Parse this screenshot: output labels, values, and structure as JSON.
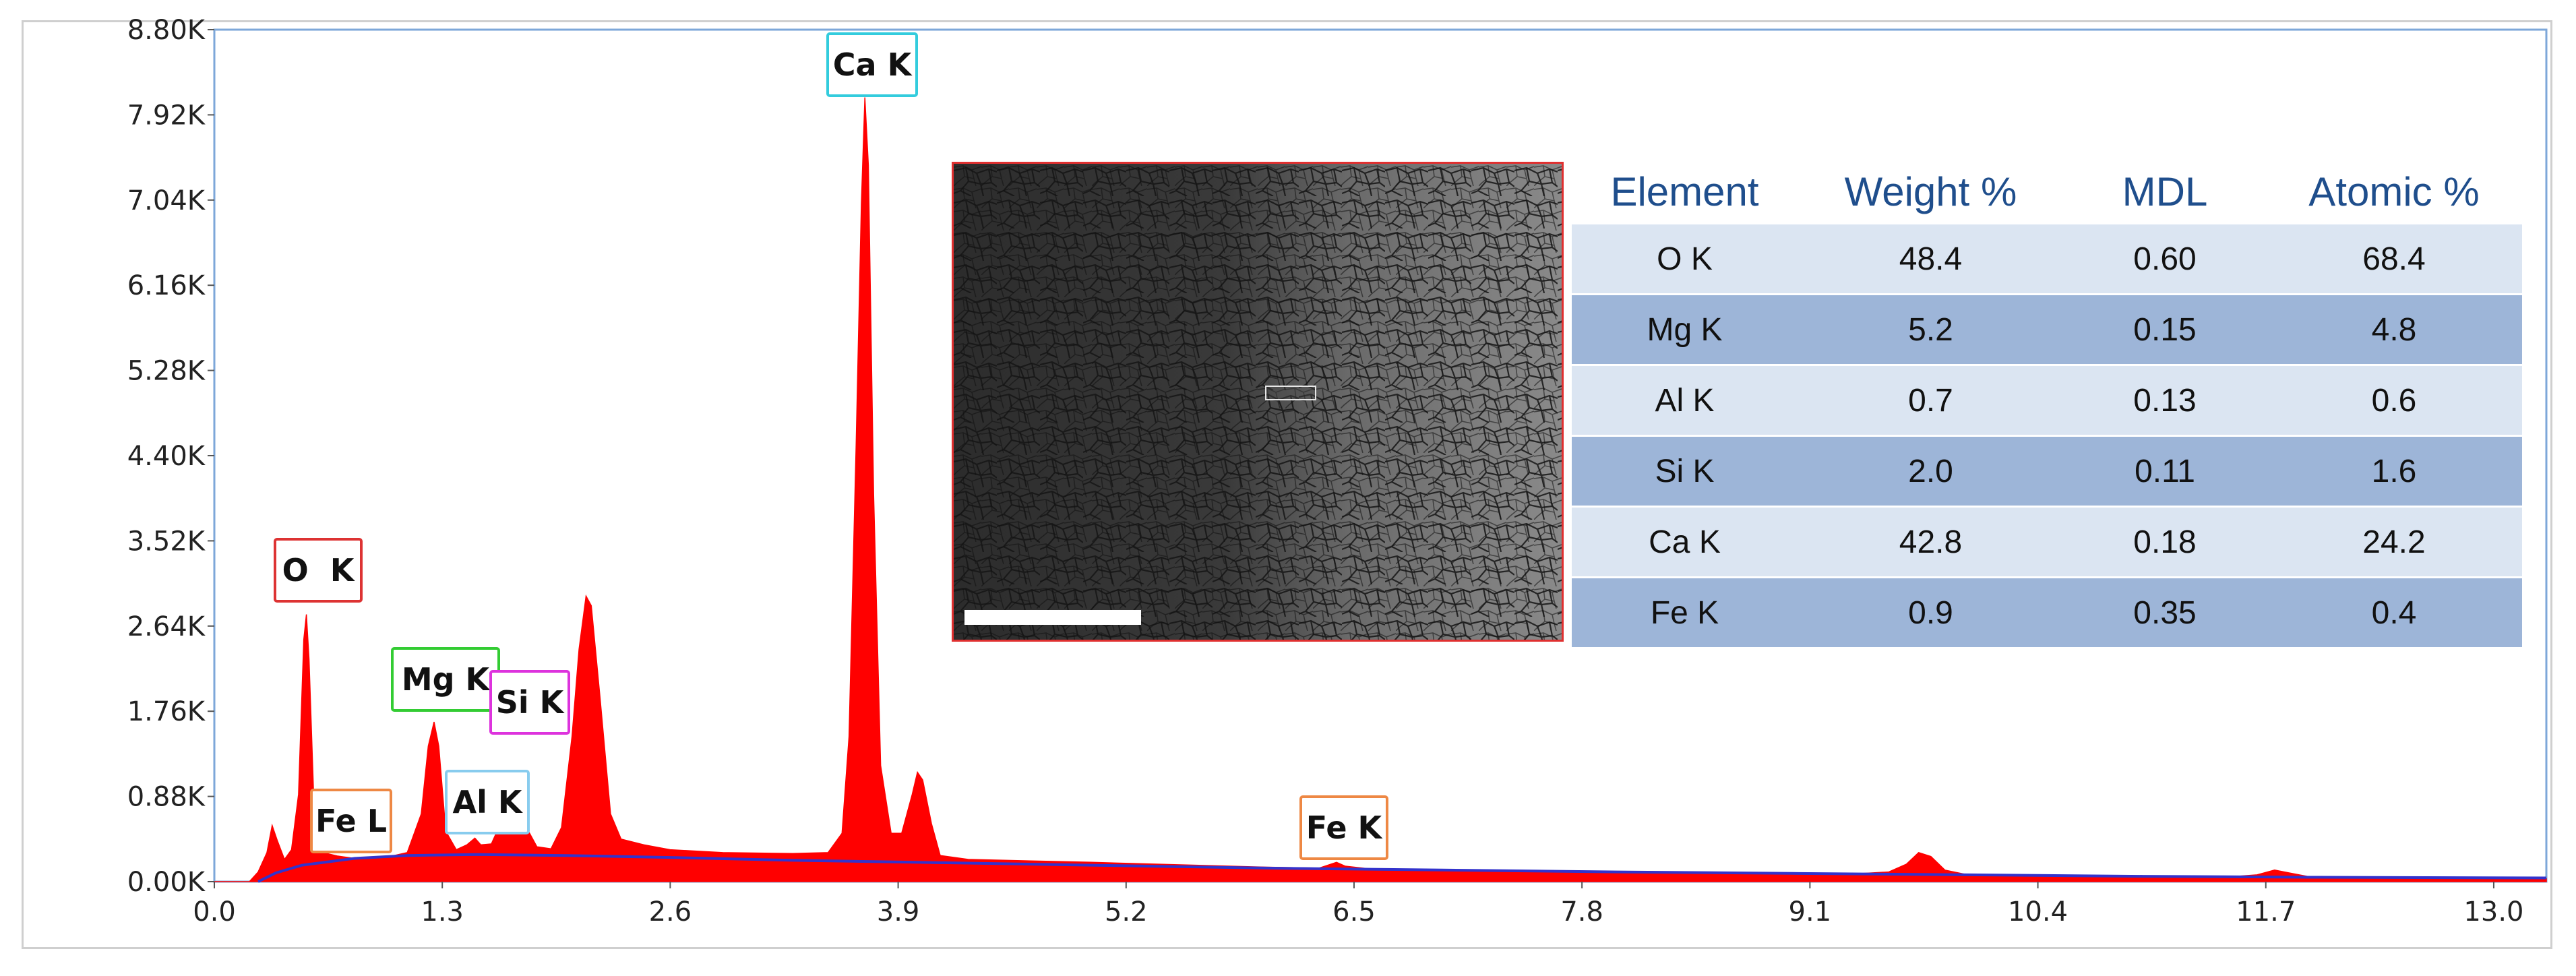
{
  "chart_data": {
    "type": "area",
    "title": "",
    "xlabel": "",
    "ylabel": "",
    "xlim": [
      0.0,
      13.3
    ],
    "ylim": [
      0,
      8800
    ],
    "x_ticks": [
      0.0,
      1.3,
      2.6,
      3.9,
      5.2,
      6.5,
      7.8,
      9.1,
      10.4,
      11.7,
      13.0
    ],
    "x_tick_labels": [
      "0.0",
      "1.3",
      "2.6",
      "3.9",
      "5.2",
      "6.5",
      "7.8",
      "9.1",
      "10.4",
      "11.7",
      "13.0"
    ],
    "y_ticks": [
      0,
      880,
      1760,
      2640,
      3520,
      4400,
      5280,
      6160,
      7040,
      7920,
      8800
    ],
    "y_tick_labels": [
      "0.00K",
      "0.88K",
      "1.76K",
      "2.64K",
      "3.52K",
      "4.40K",
      "5.28K",
      "6.16K",
      "7.04K",
      "7.92K",
      "8.80K"
    ],
    "grid": false,
    "series": [
      {
        "fill_color": "#ff0000",
        "points": [
          [
            0.0,
            0
          ],
          [
            0.2,
            0
          ],
          [
            0.25,
            100
          ],
          [
            0.3,
            300
          ],
          [
            0.33,
            580
          ],
          [
            0.36,
            420
          ],
          [
            0.4,
            230
          ],
          [
            0.44,
            330
          ],
          [
            0.48,
            900
          ],
          [
            0.51,
            2500
          ],
          [
            0.525,
            2760
          ],
          [
            0.54,
            2300
          ],
          [
            0.57,
            700
          ],
          [
            0.62,
            300
          ],
          [
            0.7,
            265
          ],
          [
            0.8,
            240
          ],
          [
            0.9,
            250
          ],
          [
            1.0,
            260
          ],
          [
            1.1,
            300
          ],
          [
            1.18,
            700
          ],
          [
            1.22,
            1400
          ],
          [
            1.253,
            1650
          ],
          [
            1.28,
            1400
          ],
          [
            1.32,
            520
          ],
          [
            1.38,
            330
          ],
          [
            1.44,
            380
          ],
          [
            1.486,
            450
          ],
          [
            1.52,
            380
          ],
          [
            1.58,
            390
          ],
          [
            1.62,
            550
          ],
          [
            1.68,
            700
          ],
          [
            1.74,
            730
          ],
          [
            1.78,
            560
          ],
          [
            1.84,
            360
          ],
          [
            1.92,
            340
          ],
          [
            1.98,
            560
          ],
          [
            2.04,
            1500
          ],
          [
            2.08,
            2400
          ],
          [
            2.12,
            2950
          ],
          [
            2.15,
            2850
          ],
          [
            2.2,
            1900
          ],
          [
            2.26,
            700
          ],
          [
            2.32,
            440
          ],
          [
            2.45,
            380
          ],
          [
            2.6,
            330
          ],
          [
            2.9,
            300
          ],
          [
            3.3,
            290
          ],
          [
            3.5,
            300
          ],
          [
            3.58,
            500
          ],
          [
            3.62,
            1500
          ],
          [
            3.66,
            4500
          ],
          [
            3.69,
            7000
          ],
          [
            3.71,
            8100
          ],
          [
            3.73,
            7400
          ],
          [
            3.76,
            4000
          ],
          [
            3.8,
            1200
          ],
          [
            3.86,
            500
          ],
          [
            3.92,
            500
          ],
          [
            3.98,
            900
          ],
          [
            4.01,
            1130
          ],
          [
            4.04,
            1050
          ],
          [
            4.09,
            600
          ],
          [
            4.14,
            270
          ],
          [
            4.3,
            230
          ],
          [
            5.0,
            200
          ],
          [
            6.0,
            150
          ],
          [
            6.3,
            140
          ],
          [
            6.4,
            200
          ],
          [
            6.45,
            160
          ],
          [
            6.6,
            130
          ],
          [
            7.5,
            110
          ],
          [
            8.5,
            90
          ],
          [
            9.3,
            75
          ],
          [
            9.55,
            100
          ],
          [
            9.65,
            180
          ],
          [
            9.72,
            300
          ],
          [
            9.79,
            260
          ],
          [
            9.87,
            120
          ],
          [
            10.0,
            70
          ],
          [
            11.0,
            50
          ],
          [
            11.5,
            50
          ],
          [
            11.65,
            70
          ],
          [
            11.75,
            120
          ],
          [
            11.82,
            95
          ],
          [
            11.95,
            50
          ],
          [
            12.5,
            35
          ],
          [
            13.3,
            30
          ]
        ]
      },
      {
        "line_color": "#3333cc",
        "points": [
          [
            0.25,
            0
          ],
          [
            0.35,
            90
          ],
          [
            0.5,
            170
          ],
          [
            0.8,
            240
          ],
          [
            1.1,
            270
          ],
          [
            1.5,
            280
          ],
          [
            2.0,
            270
          ],
          [
            2.6,
            250
          ],
          [
            3.3,
            220
          ],
          [
            4.0,
            200
          ],
          [
            5.0,
            170
          ],
          [
            6.0,
            140
          ],
          [
            7.0,
            120
          ],
          [
            8.0,
            100
          ],
          [
            9.0,
            85
          ],
          [
            10.0,
            70
          ],
          [
            11.0,
            55
          ],
          [
            12.0,
            45
          ],
          [
            13.3,
            38
          ]
        ]
      }
    ],
    "annotations": [
      {
        "text": "Ca K",
        "color": "#33ccdd"
      },
      {
        "text": "O  K",
        "color": "#dd3333"
      },
      {
        "text": "Mg K",
        "color": "#33cc33"
      },
      {
        "text": "Si K",
        "color": "#dd33dd"
      },
      {
        "text": "Al K",
        "color": "#88ccee"
      },
      {
        "text": "Fe L",
        "color": "#ee8844"
      },
      {
        "text": "Fe K",
        "color": "#ee8844"
      }
    ]
  },
  "table": {
    "headers": [
      "Element",
      "Weight %",
      "MDL",
      "Atomic %"
    ],
    "rows": [
      [
        "O  K",
        "48.4",
        "0.60",
        "68.4"
      ],
      [
        "Mg K",
        "5.2",
        "0.15",
        "4.8"
      ],
      [
        "Al K",
        "0.7",
        "0.13",
        "0.6"
      ],
      [
        "Si K",
        "2.0",
        "0.11",
        "1.6"
      ],
      [
        "Ca K",
        "42.8",
        "0.18",
        "24.2"
      ],
      [
        "Fe K",
        "0.9",
        "0.35",
        "0.4"
      ]
    ]
  }
}
